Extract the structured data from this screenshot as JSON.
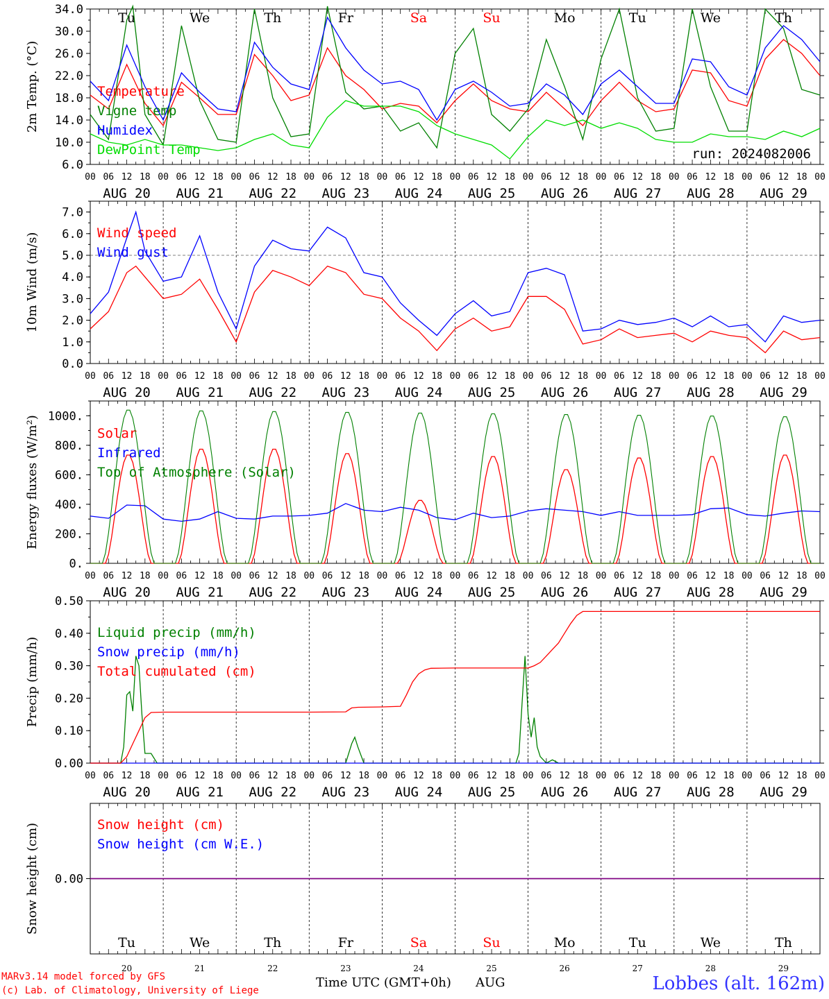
{
  "chart_data": [
    {
      "type": "line",
      "id": "temp",
      "ylabel": "2m Temp. (°C)",
      "ylim": [
        6.0,
        34.0
      ],
      "yticks": [
        "6.0",
        "10.0",
        "14.0",
        "18.0",
        "22.0",
        "26.0",
        "30.0",
        "34.0"
      ],
      "ytick_values": [
        6,
        10,
        14,
        18,
        22,
        26,
        30,
        34
      ],
      "grid": "vertical dashed at day boundaries",
      "legend_placement": "left",
      "annotation": "run: 2024082006",
      "series": [
        {
          "name": "Temperature",
          "color": "#ff0000",
          "x": [
            0,
            6,
            12,
            18,
            24,
            30,
            36,
            42,
            48,
            54,
            60,
            66,
            72,
            78,
            84,
            90,
            96,
            102,
            108,
            114,
            120,
            126,
            132,
            138,
            144,
            150,
            156,
            162,
            168,
            174,
            180,
            186,
            192,
            198,
            204,
            210,
            216,
            222,
            228,
            234,
            240
          ],
          "y": [
            18.5,
            16.0,
            24.0,
            17.0,
            13.0,
            20.8,
            18.0,
            15.0,
            15.0,
            25.8,
            22.0,
            17.5,
            18.5,
            27.0,
            22.0,
            19.5,
            16.0,
            17.0,
            16.5,
            13.5,
            17.5,
            20.5,
            17.5,
            16.0,
            15.5,
            19.0,
            16.0,
            13.0,
            17.5,
            20.8,
            17.5,
            15.5,
            16.0,
            23.0,
            22.5,
            17.5,
            16.5,
            25.0,
            28.5,
            26.0,
            22.0
          ]
        },
        {
          "name": "Vigne temp",
          "color": "#008000",
          "x": [
            0,
            6,
            12,
            14,
            18,
            24,
            30,
            36,
            42,
            48,
            54,
            60,
            66,
            72,
            78,
            84,
            90,
            96,
            102,
            108,
            114,
            120,
            126,
            132,
            138,
            144,
            150,
            156,
            162,
            168,
            174,
            180,
            186,
            192,
            198,
            204,
            210,
            216,
            222,
            228,
            234,
            240
          ],
          "y": [
            15.0,
            10.5,
            32.0,
            34.5,
            15.0,
            9.5,
            31.0,
            17.5,
            10.5,
            10.0,
            34.0,
            18.0,
            11.0,
            11.5,
            34.5,
            19.0,
            16.0,
            16.5,
            12.0,
            13.5,
            9.0,
            26.0,
            30.5,
            15.0,
            12.0,
            16.0,
            28.5,
            20.0,
            10.5,
            25.0,
            34.0,
            18.0,
            12.0,
            12.5,
            34.0,
            20.0,
            12.0,
            12.0,
            34.0,
            30.5,
            19.5,
            18.5
          ]
        },
        {
          "name": "Humidex",
          "color": "#0000ff",
          "x": [
            0,
            6,
            12,
            18,
            24,
            30,
            36,
            42,
            48,
            54,
            60,
            66,
            72,
            78,
            84,
            90,
            96,
            102,
            108,
            114,
            120,
            126,
            132,
            138,
            144,
            150,
            156,
            162,
            168,
            174,
            180,
            186,
            192,
            198,
            204,
            210,
            216,
            222,
            228,
            234,
            240
          ],
          "y": [
            21.0,
            17.5,
            27.5,
            20.0,
            14.0,
            22.5,
            19.0,
            16.0,
            15.5,
            28.0,
            23.5,
            20.5,
            19.5,
            32.5,
            27.0,
            23.0,
            20.5,
            21.0,
            19.5,
            14.0,
            19.5,
            21.0,
            19.0,
            16.5,
            17.0,
            20.5,
            18.5,
            15.0,
            20.5,
            23.0,
            20.0,
            17.0,
            17.0,
            25.0,
            24.5,
            20.0,
            18.5,
            27.0,
            31.0,
            28.5,
            24.5
          ]
        },
        {
          "name": "DewPoint Temp",
          "color": "#00dd00",
          "x": [
            0,
            6,
            12,
            18,
            24,
            30,
            36,
            42,
            48,
            54,
            60,
            66,
            72,
            78,
            84,
            90,
            96,
            102,
            108,
            114,
            120,
            126,
            132,
            138,
            144,
            150,
            156,
            162,
            168,
            174,
            180,
            186,
            192,
            198,
            204,
            210,
            216,
            222,
            228,
            234,
            240
          ],
          "y": [
            11.5,
            10.0,
            9.5,
            10.5,
            9.5,
            9.5,
            9.0,
            8.5,
            9.0,
            10.5,
            11.5,
            9.5,
            9.0,
            14.5,
            17.5,
            16.5,
            16.5,
            16.5,
            15.5,
            13.0,
            11.5,
            10.5,
            9.5,
            7.0,
            11.0,
            14.0,
            13.0,
            14.0,
            12.5,
            13.5,
            12.5,
            10.5,
            10.0,
            10.0,
            11.5,
            11.0,
            11.0,
            10.5,
            12.0,
            11.0,
            12.5
          ]
        }
      ]
    },
    {
      "type": "line",
      "id": "wind",
      "ylabel": "10m Wind (m/s)",
      "ylim": [
        0.0,
        7.5
      ],
      "yticks": [
        "0.0",
        "1.0",
        "2.0",
        "3.0",
        "4.0",
        "5.0",
        "6.0",
        "7.0"
      ],
      "ytick_values": [
        0,
        1,
        2,
        3,
        4,
        5,
        6,
        7
      ],
      "reference_line": 5.0,
      "legend_placement": "left",
      "series": [
        {
          "name": "Wind speed",
          "color": "#ff0000",
          "x": [
            0,
            6,
            12,
            15,
            18,
            24,
            30,
            36,
            42,
            48,
            54,
            60,
            66,
            72,
            78,
            84,
            90,
            96,
            102,
            108,
            114,
            120,
            126,
            132,
            138,
            144,
            150,
            156,
            162,
            168,
            174,
            180,
            186,
            192,
            198,
            204,
            210,
            216,
            222,
            228,
            234,
            240
          ],
          "y": [
            1.6,
            2.4,
            4.2,
            4.5,
            4.0,
            3.0,
            3.2,
            3.9,
            2.5,
            1.0,
            3.3,
            4.3,
            4.0,
            3.6,
            4.5,
            4.2,
            3.2,
            3.0,
            2.1,
            1.5,
            0.6,
            1.6,
            2.1,
            1.5,
            1.7,
            3.1,
            3.1,
            2.5,
            0.9,
            1.1,
            1.6,
            1.2,
            1.3,
            1.4,
            1.0,
            1.5,
            1.3,
            1.2,
            0.5,
            1.5,
            1.1,
            1.2
          ]
        },
        {
          "name": "Wind gust",
          "color": "#0000ff",
          "x": [
            0,
            6,
            12,
            15,
            18,
            24,
            30,
            36,
            42,
            48,
            54,
            60,
            66,
            72,
            78,
            84,
            90,
            96,
            102,
            108,
            114,
            120,
            126,
            132,
            138,
            144,
            150,
            156,
            162,
            168,
            174,
            180,
            186,
            192,
            198,
            204,
            210,
            216,
            222,
            228,
            234,
            240
          ],
          "y": [
            2.3,
            3.3,
            5.8,
            7.0,
            5.2,
            3.8,
            4.0,
            5.9,
            3.3,
            1.6,
            4.5,
            5.7,
            5.3,
            5.2,
            6.3,
            5.8,
            4.2,
            4.0,
            2.8,
            2.0,
            1.3,
            2.3,
            2.9,
            2.2,
            2.4,
            4.2,
            4.4,
            4.1,
            1.5,
            1.6,
            2.0,
            1.8,
            1.9,
            2.1,
            1.7,
            2.2,
            1.7,
            1.8,
            1.0,
            2.2,
            1.9,
            2.0
          ]
        }
      ]
    },
    {
      "type": "line",
      "id": "flux",
      "ylabel": "Energy fluxes (W/m²)",
      "ylim": [
        0,
        1100
      ],
      "yticks": [
        "0.",
        "200.",
        "400.",
        "600.",
        "800.",
        "1000."
      ],
      "ytick_values": [
        0,
        200,
        400,
        600,
        800,
        1000
      ],
      "legend_placement": "left",
      "series": [
        {
          "name": "Solar",
          "color": "#ff0000",
          "peaks": [
            740,
            780,
            780,
            750,
            430,
            730,
            640,
            720,
            730,
            740
          ]
        },
        {
          "name": "Infrared",
          "color": "#0000ff",
          "x": [
            0,
            6,
            12,
            18,
            24,
            30,
            36,
            42,
            48,
            54,
            60,
            66,
            72,
            78,
            84,
            90,
            96,
            102,
            108,
            114,
            120,
            126,
            132,
            138,
            144,
            150,
            156,
            162,
            168,
            174,
            180,
            186,
            192,
            198,
            204,
            210,
            216,
            222,
            228,
            234,
            240
          ],
          "y": [
            320,
            305,
            395,
            390,
            300,
            285,
            300,
            350,
            305,
            300,
            320,
            320,
            325,
            340,
            405,
            360,
            350,
            380,
            360,
            310,
            295,
            340,
            310,
            320,
            355,
            370,
            360,
            350,
            325,
            350,
            325,
            325,
            325,
            330,
            370,
            375,
            330,
            320,
            340,
            355,
            350
          ]
        },
        {
          "name": "Top of Atmosphere (Solar)",
          "color": "#008000",
          "peak_values": [
            1045,
            1040,
            1035,
            1030,
            1025,
            1020,
            1015,
            1010,
            1005,
            1000
          ]
        }
      ]
    },
    {
      "type": "line",
      "id": "precip",
      "ylabel": "Precip (mm/h)",
      "ylim": [
        0.0,
        0.5
      ],
      "yticks": [
        "0.00",
        "0.10",
        "0.20",
        "0.30",
        "0.40",
        "0.50"
      ],
      "ytick_values": [
        0,
        0.1,
        0.2,
        0.3,
        0.4,
        0.5
      ],
      "legend_placement": "left",
      "series": [
        {
          "name": "Liquid precip (mm/h)",
          "color": "#008000",
          "x": [
            0,
            10,
            11,
            12,
            13,
            14,
            15,
            16,
            17,
            18,
            20,
            22,
            24,
            84,
            86,
            87,
            88,
            90,
            96,
            140,
            141,
            142,
            143,
            144,
            145,
            146,
            147,
            148,
            150,
            152,
            154,
            156,
            168,
            192,
            240
          ],
          "y": [
            0,
            0,
            0.05,
            0.21,
            0.22,
            0.16,
            0.33,
            0.3,
            0.15,
            0.03,
            0.03,
            0,
            0,
            0,
            0.06,
            0.08,
            0.05,
            0,
            0,
            0,
            0.03,
            0.18,
            0.33,
            0.15,
            0.08,
            0.14,
            0.05,
            0.02,
            0,
            0.01,
            0,
            0,
            0,
            0,
            0
          ]
        },
        {
          "name": "Snow precip (mm/h)",
          "color": "#0000ff",
          "x": [
            0,
            240
          ],
          "y": [
            0,
            0
          ]
        },
        {
          "name": "Total cumulated (cm)",
          "color": "#ff0000",
          "x": [
            0,
            10,
            12,
            14,
            16,
            18,
            20,
            24,
            48,
            72,
            84,
            86,
            88,
            96,
            102,
            104,
            106,
            108,
            110,
            112,
            120,
            144,
            146,
            148,
            150,
            152,
            154,
            156,
            158,
            160,
            162,
            168,
            192,
            216,
            240
          ],
          "y": [
            0,
            0,
            0.02,
            0.06,
            0.1,
            0.14,
            0.156,
            0.157,
            0.157,
            0.157,
            0.158,
            0.17,
            0.172,
            0.173,
            0.175,
            0.21,
            0.25,
            0.275,
            0.287,
            0.292,
            0.293,
            0.293,
            0.3,
            0.31,
            0.33,
            0.35,
            0.37,
            0.4,
            0.43,
            0.455,
            0.467,
            0.467,
            0.467,
            0.467,
            0.467
          ]
        }
      ]
    },
    {
      "type": "line",
      "id": "snow",
      "ylabel": "Snow height (cm)",
      "ylim": [
        -1,
        1
      ],
      "yticks": [
        "0.00"
      ],
      "ytick_values": [
        0
      ],
      "legend_placement": "left",
      "series": [
        {
          "name": "Snow height (cm)",
          "color": "#ff0000",
          "x": [
            0,
            240
          ],
          "y": [
            0,
            0
          ]
        },
        {
          "name": "Snow height (cm W.E.)",
          "color": "#0000ff",
          "x": [
            0,
            240
          ],
          "y": [
            0,
            0
          ]
        }
      ]
    }
  ],
  "x_axis": {
    "hour_ticks": [
      "00",
      "06",
      "12",
      "18"
    ],
    "dates": [
      "AUG 20",
      "AUG 21",
      "AUG 22",
      "AUG 23",
      "AUG 24",
      "AUG 25",
      "AUG 26",
      "AUG 27",
      "AUG 28",
      "AUG 29"
    ],
    "end_tick": "00",
    "days": [
      {
        "name": "Tu",
        "weekend": false
      },
      {
        "name": "We",
        "weekend": false
      },
      {
        "name": "Th",
        "weekend": false
      },
      {
        "name": "Fr",
        "weekend": false
      },
      {
        "name": "Sa",
        "weekend": true
      },
      {
        "name": "Su",
        "weekend": true
      },
      {
        "name": "Mo",
        "weekend": false
      },
      {
        "name": "Tu",
        "weekend": false
      },
      {
        "name": "We",
        "weekend": false
      },
      {
        "name": "Th",
        "weekend": false
      }
    ],
    "day_numbers": [
      "20",
      "21",
      "22",
      "23",
      "24",
      "25",
      "26",
      "27",
      "28",
      "29"
    ]
  },
  "colors": {
    "weekday": "#000000",
    "weekend": "#ff0000",
    "footer_location": "#3333ff"
  },
  "footer": {
    "model_line": "MARv3.14 model forced by GFS",
    "copyright_line": "(c) Lab. of Climatology, University of Liege",
    "xlabel": "Time UTC (GMT+0h)",
    "month": "AUG",
    "location": "Lobbes (alt. 162m)"
  }
}
